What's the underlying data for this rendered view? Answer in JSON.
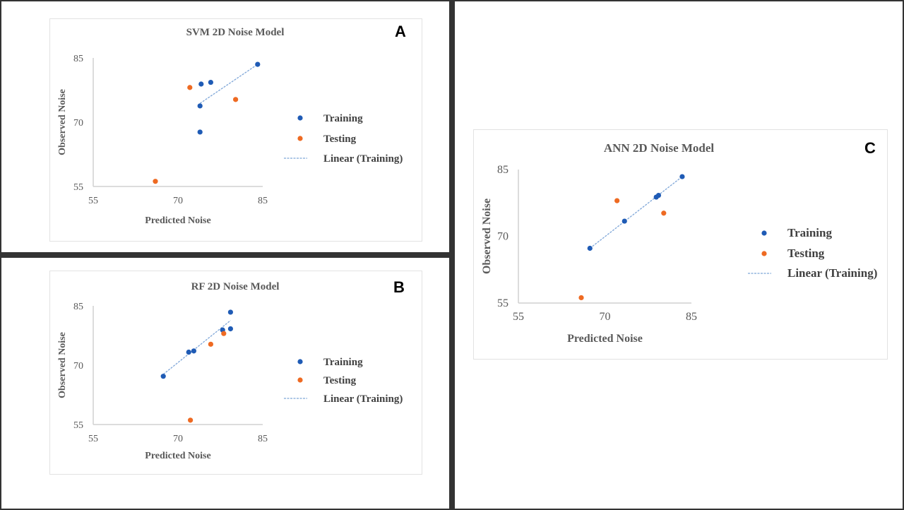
{
  "colors": {
    "training": "#1f5bb5",
    "testing": "#ee6a22",
    "trendline": "#7ea6d8",
    "axis": "#d0d0d0"
  },
  "chart_data": [
    {
      "type": "scatter",
      "panel_label": "A",
      "title": "SVM 2D Noise Model",
      "xlabel": "Predicted Noise",
      "ylabel": "Observed Noise",
      "xlim": [
        55,
        85
      ],
      "ylim": [
        55,
        85
      ],
      "xticks": [
        "55",
        "70",
        "85"
      ],
      "yticks": [
        "55",
        "70",
        "85"
      ],
      "grid": false,
      "legend_position": "right",
      "series": [
        {
          "name": "Training",
          "points": [
            [
              84.1,
              83.5
            ],
            [
              74.1,
              78.9
            ],
            [
              75.8,
              79.3
            ],
            [
              73.9,
              73.8
            ],
            [
              73.9,
              67.7
            ]
          ]
        },
        {
          "name": "Testing",
          "points": [
            [
              72.1,
              78.1
            ],
            [
              80.2,
              75.3
            ],
            [
              66.0,
              56.2
            ]
          ]
        }
      ],
      "trendline": {
        "name": "Linear (Training)",
        "points": [
          [
            73.9,
            74.4
          ],
          [
            84.1,
            83.5
          ]
        ]
      }
    },
    {
      "type": "scatter",
      "panel_label": "B",
      "title": "RF 2D Noise Model",
      "xlabel": "Predicted Noise",
      "ylabel": "Observed Noise",
      "xlim": [
        55,
        85
      ],
      "ylim": [
        55,
        85
      ],
      "xticks": [
        "55",
        "70",
        "85"
      ],
      "yticks": [
        "55",
        "70",
        "85"
      ],
      "grid": false,
      "legend_position": "right",
      "series": [
        {
          "name": "Training",
          "points": [
            [
              79.3,
              83.4
            ],
            [
              79.3,
              79.2
            ],
            [
              77.9,
              78.9
            ],
            [
              71.9,
              73.3
            ],
            [
              72.8,
              73.6
            ],
            [
              67.4,
              67.2
            ]
          ]
        },
        {
          "name": "Testing",
          "points": [
            [
              78.1,
              78.0
            ],
            [
              75.8,
              75.3
            ],
            [
              72.2,
              56.1
            ]
          ]
        }
      ],
      "trendline": {
        "name": "Linear (Training)",
        "points": [
          [
            67.4,
            67.7
          ],
          [
            79.3,
            81.3
          ]
        ]
      }
    },
    {
      "type": "scatter",
      "panel_label": "C",
      "title": "ANN 2D Noise Model",
      "xlabel": "Predicted Noise",
      "ylabel": "Observed Noise",
      "xlim": [
        55,
        85
      ],
      "ylim": [
        55,
        85
      ],
      "xticks": [
        "55",
        "70",
        "85"
      ],
      "yticks": [
        "55",
        "70",
        "85"
      ],
      "grid": false,
      "legend_position": "right",
      "series": [
        {
          "name": "Training",
          "points": [
            [
              83.4,
              83.4
            ],
            [
              78.9,
              78.8
            ],
            [
              79.3,
              79.2
            ],
            [
              73.4,
              73.4
            ],
            [
              67.4,
              67.3
            ]
          ]
        },
        {
          "name": "Testing",
          "points": [
            [
              72.1,
              78.0
            ],
            [
              80.2,
              75.2
            ],
            [
              65.9,
              56.2
            ]
          ]
        }
      ],
      "trendline": {
        "name": "Linear (Training)",
        "points": [
          [
            67.4,
            67.3
          ],
          [
            83.4,
            83.4
          ]
        ]
      }
    }
  ]
}
